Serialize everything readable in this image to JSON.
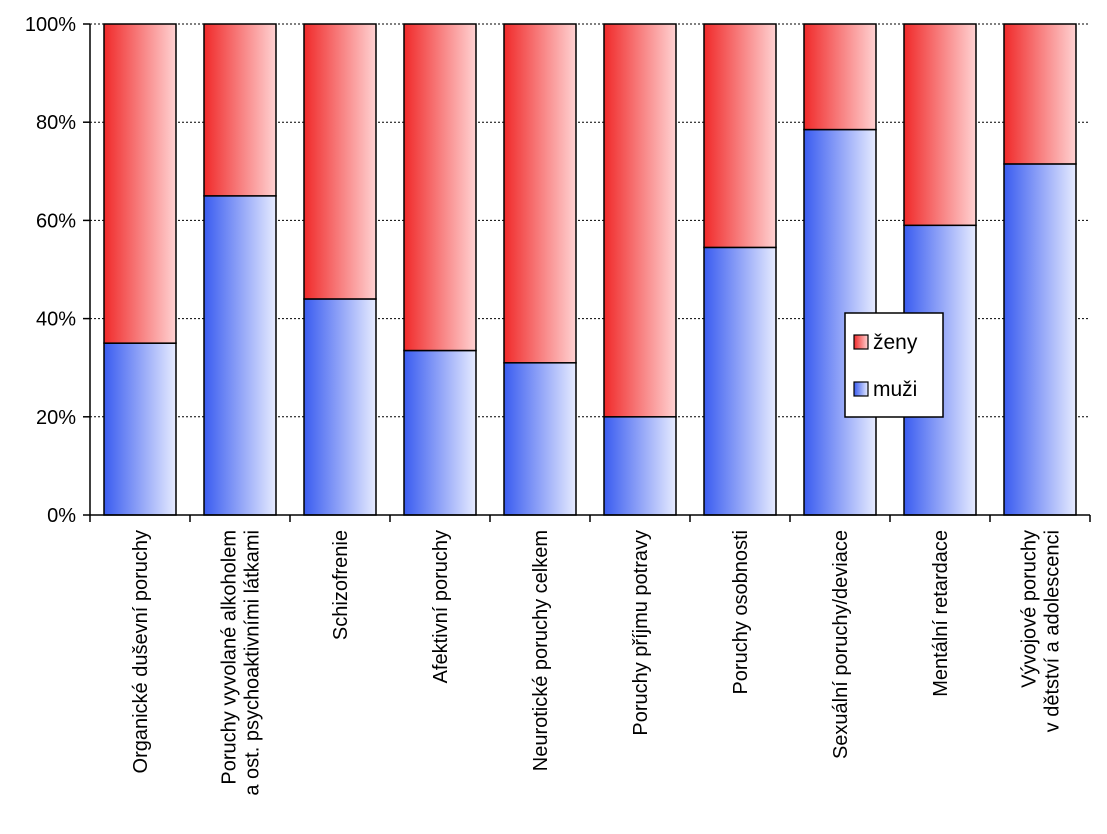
{
  "chart_data": {
    "type": "bar",
    "stacked": true,
    "percent": true,
    "categories": [
      [
        "Organické duševní poruchy"
      ],
      [
        "Poruchy vyvolané alkoholem",
        "a ost. psychoaktivními látkami"
      ],
      [
        "Schizofrenie"
      ],
      [
        "Afektivní poruchy"
      ],
      [
        "Neurotické poruchy celkem"
      ],
      [
        "Poruchy příjmu potravy"
      ],
      [
        "Poruchy osobnosti"
      ],
      [
        "Sexuální poruchy/deviace"
      ],
      [
        "Mentální retardace"
      ],
      [
        "Vývojové poruchy",
        "v dětství a adolescenci"
      ]
    ],
    "series": [
      {
        "name": "muži",
        "values": [
          35,
          65,
          44,
          33.5,
          31,
          20,
          54.5,
          78.5,
          59,
          71.5
        ],
        "color": "#4a6cf0"
      },
      {
        "name": "ženy",
        "values": [
          65,
          35,
          56,
          66.5,
          69,
          80,
          45.5,
          21.5,
          41,
          28.5
        ],
        "color": "#f04040"
      }
    ],
    "ylim": [
      0,
      100
    ],
    "yticks": [
      "0%",
      "20%",
      "40%",
      "60%",
      "80%",
      "100%"
    ],
    "grid": true,
    "legend_position": "right-inside",
    "legend_order": [
      "ženy",
      "muži"
    ]
  }
}
